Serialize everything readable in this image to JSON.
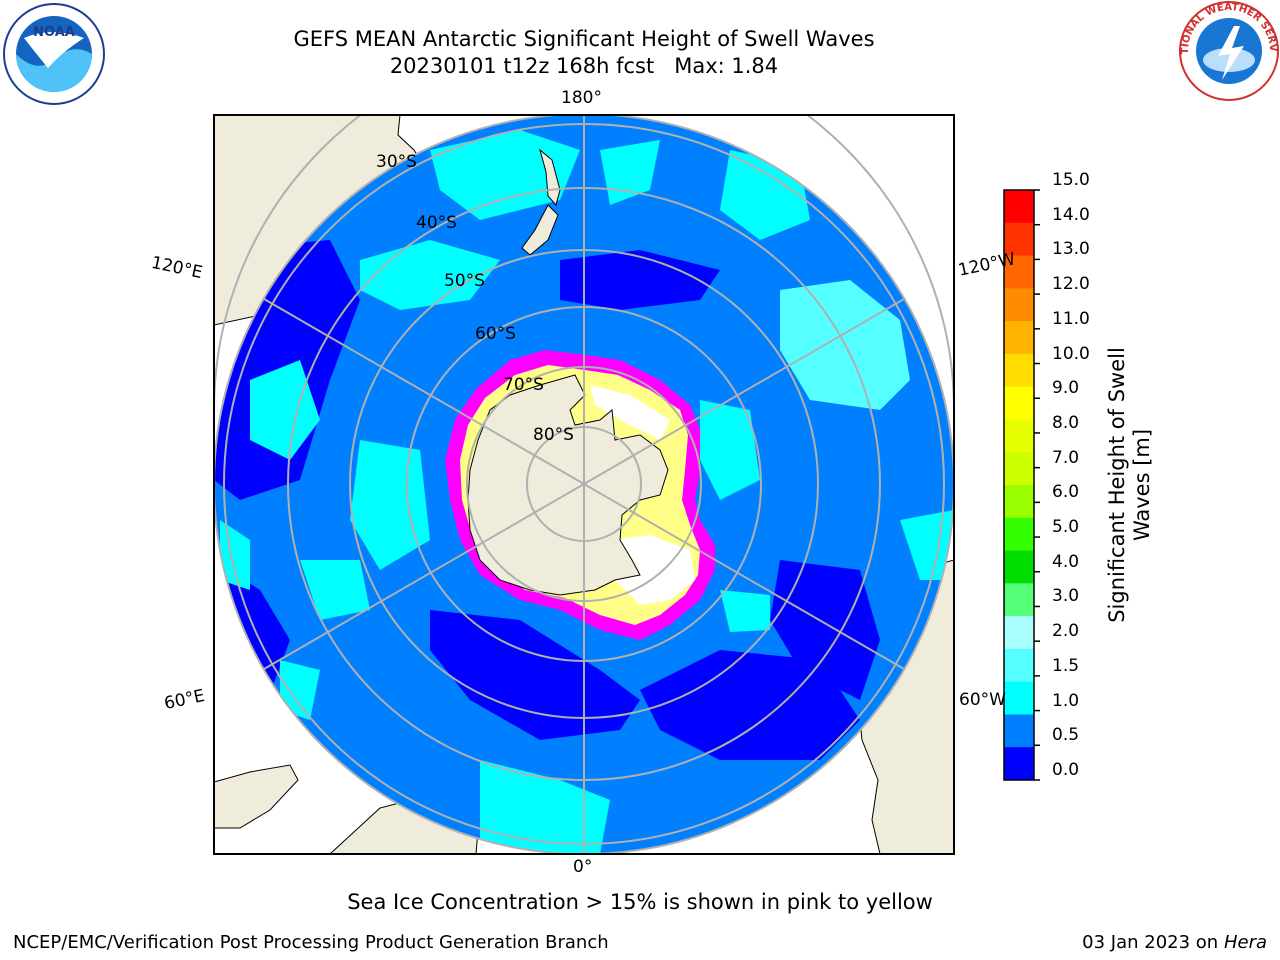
{
  "header": {
    "title_line1": "GEFS MEAN Antarctic Significant Height of Swell Waves",
    "title_line2": "20230101 t12z 168h fcst   Max: 1.84"
  },
  "logos": {
    "left": "NOAA",
    "right": "NATIONAL WEATHER SERVICE"
  },
  "map": {
    "projection": "south-polar-stereographic",
    "longitude_labels": [
      "180°",
      "120°E",
      "120°W",
      "60°E",
      "60°W",
      "0°"
    ],
    "latitude_labels": [
      "30°S",
      "40°S",
      "50°S",
      "60°S",
      "70°S",
      "80°S"
    ],
    "colors": {
      "land": "#efecdc",
      "ocean_low": "#0000ff",
      "ocean_mid": "#0080ff",
      "ocean_high": "#00ffff",
      "ocean_higher": "#55ffff",
      "ice_edge": "#ff00ff",
      "ice_inner": "#ffff88",
      "grid": "#b0b0b0"
    }
  },
  "colorbar": {
    "label_line1": "Significant Height of Swell",
    "label_line2": "Waves [m]",
    "ticks": [
      "15.0",
      "14.0",
      "13.0",
      "12.0",
      "11.0",
      "10.0",
      "9.0",
      "8.0",
      "7.0",
      "6.0",
      "5.0",
      "4.0",
      "3.0",
      "2.0",
      "1.5",
      "1.0",
      "0.5",
      "0.0"
    ],
    "colors": [
      "#ff0000",
      "#ff3300",
      "#ff6600",
      "#ff8c00",
      "#ffb300",
      "#ffdd00",
      "#ffff00",
      "#e6ff00",
      "#ccff00",
      "#99ff00",
      "#33ff00",
      "#00dd00",
      "#55ff77",
      "#aaffff",
      "#55ffff",
      "#00ffff",
      "#0080ff",
      "#0000ff"
    ]
  },
  "note": "Sea Ice Concentration > 15% is shown in pink to yellow",
  "footer": {
    "left": "NCEP/EMC/Verification Post Processing Product Generation Branch",
    "right_date": "03 Jan 2023 on ",
    "right_host": "Hera"
  }
}
